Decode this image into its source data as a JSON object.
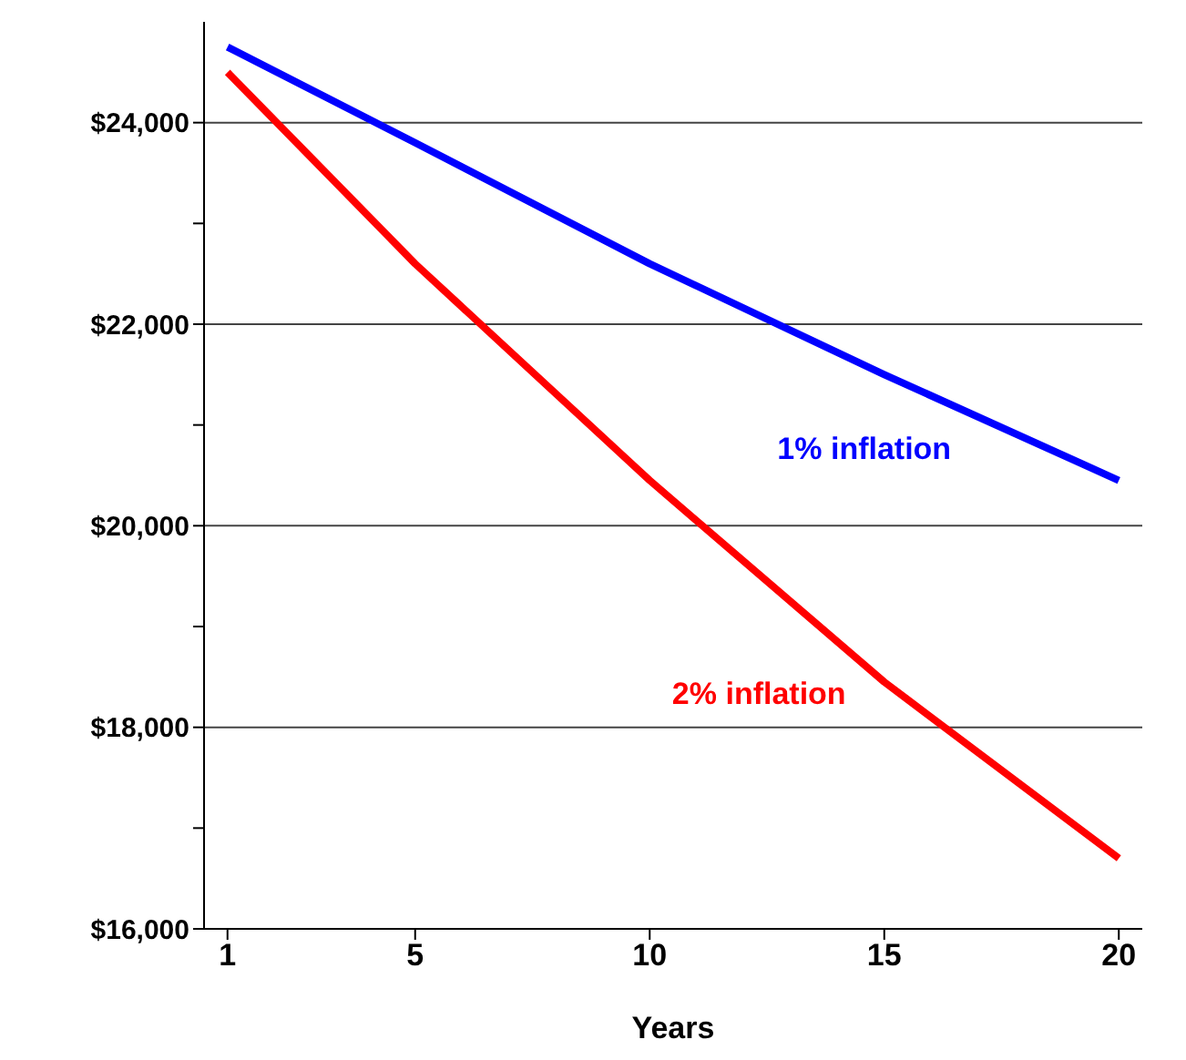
{
  "chart_data": {
    "type": "line",
    "xlabel": "Years",
    "x": [
      1,
      5,
      10,
      15,
      20
    ],
    "series": [
      {
        "name": "1% inflation",
        "color": "#0000ff",
        "values": [
          24750,
          23800,
          22600,
          21500,
          20450
        ]
      },
      {
        "name": "2% inflation",
        "color": "#ff0000",
        "values": [
          24500,
          22600,
          20450,
          18450,
          16700
        ]
      }
    ],
    "xlim": [
      0.5,
      20.5
    ],
    "xticks": [
      1,
      5,
      10,
      15,
      20
    ],
    "ylim": [
      16000,
      25000
    ],
    "yticks": [
      {
        "value": 16000,
        "label": "$16,000"
      },
      {
        "value": 17000,
        "label": null
      },
      {
        "value": 18000,
        "label": "$18,000"
      },
      {
        "value": 19000,
        "label": null
      },
      {
        "value": 20000,
        "label": "$20,000"
      },
      {
        "value": 21000,
        "label": null
      },
      {
        "value": 22000,
        "label": "$22,000"
      },
      {
        "value": 23000,
        "label": null
      },
      {
        "value": 24000,
        "label": "$24,000"
      }
    ],
    "grid": "y",
    "legend": false,
    "marker": "none",
    "line_style": "solid"
  }
}
